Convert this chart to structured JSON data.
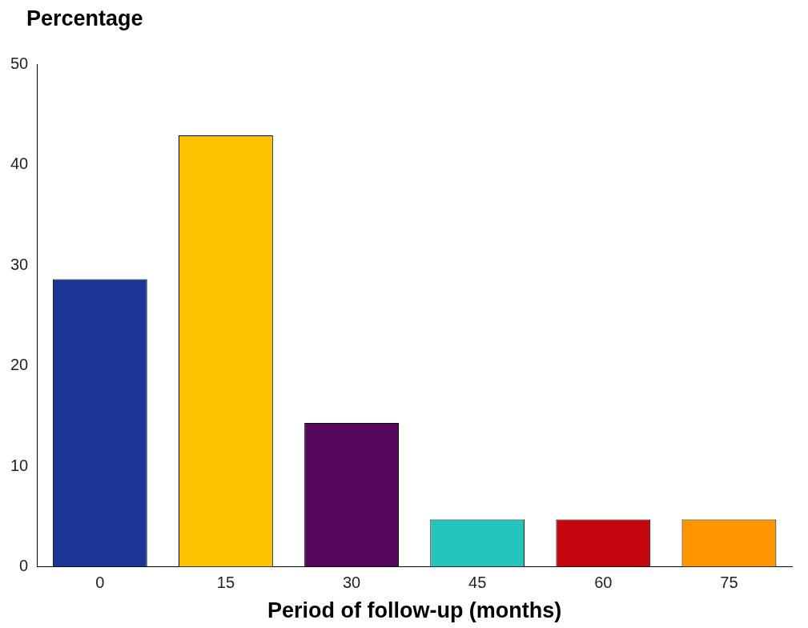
{
  "chart_data": {
    "type": "bar",
    "ylabel": "Percentage",
    "xlabel": "Period of follow-up (months)",
    "categories": [
      "0",
      "15",
      "30",
      "45",
      "60",
      "75"
    ],
    "values": [
      28.6,
      42.9,
      14.3,
      4.7,
      4.7,
      4.7
    ],
    "colors": [
      "#1a3594",
      "#fdc300",
      "#56085f",
      "#25c4bd",
      "#c4070f",
      "#ff9600"
    ],
    "ylim": [
      0,
      50
    ],
    "yticks": [
      0,
      10,
      20,
      30,
      40,
      50
    ],
    "grid": false,
    "legend": false
  }
}
